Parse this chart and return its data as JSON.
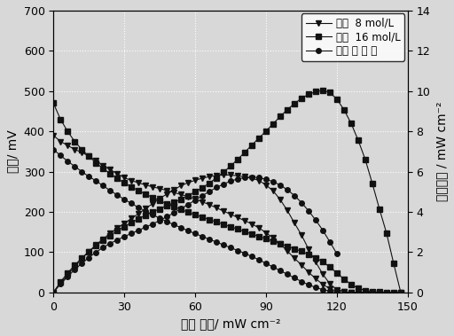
{
  "xlabel": "电流 密度/ mW cm⁻²",
  "ylabel_left": "电压/ mV",
  "ylabel_right": "功率密度 / mW cm⁻²",
  "xlim": [
    0,
    150
  ],
  "ylim_left": [
    0,
    700
  ],
  "ylim_right": [
    0,
    14
  ],
  "background_color": "#d8d8d8",
  "legend_labels": [
    "液体  8 mol/L",
    "气态  16 mol/L",
    "气态 纯 甲 醇"
  ],
  "v1x": [
    0,
    3,
    6,
    9,
    12,
    15,
    18,
    21,
    24,
    27,
    30,
    33,
    36,
    39,
    42,
    45,
    48,
    51,
    54,
    57,
    60,
    63,
    66,
    69,
    72,
    75,
    78,
    81,
    84,
    87,
    90,
    93,
    96,
    99,
    102,
    105,
    108,
    111,
    114,
    117,
    120,
    123,
    126,
    129,
    132,
    135
  ],
  "v1y": [
    390,
    375,
    365,
    355,
    348,
    338,
    328,
    315,
    305,
    295,
    285,
    278,
    272,
    267,
    262,
    258,
    253,
    248,
    243,
    238,
    232,
    225,
    218,
    210,
    202,
    194,
    186,
    178,
    170,
    160,
    148,
    135,
    120,
    103,
    85,
    68,
    50,
    34,
    20,
    9,
    3,
    1,
    0,
    0,
    0,
    0
  ],
  "p1x": [
    0,
    3,
    6,
    9,
    12,
    15,
    18,
    21,
    24,
    27,
    30,
    33,
    36,
    39,
    42,
    45,
    48,
    51,
    54,
    57,
    60,
    63,
    66,
    69,
    72,
    75,
    78,
    81,
    84,
    87,
    90,
    93,
    96,
    99,
    102,
    105,
    108,
    111,
    114,
    117,
    120,
    123,
    126,
    129,
    132,
    135
  ],
  "p1y": [
    0,
    0.45,
    0.87,
    1.28,
    1.67,
    2.03,
    2.36,
    2.65,
    2.93,
    3.19,
    3.43,
    3.67,
    3.91,
    4.16,
    4.41,
    4.67,
    4.88,
    5.1,
    5.3,
    5.45,
    5.57,
    5.67,
    5.75,
    5.81,
    5.83,
    5.83,
    5.79,
    5.74,
    5.67,
    5.56,
    5.33,
    5.04,
    4.61,
    4.07,
    3.45,
    2.85,
    2.15,
    1.51,
    0.91,
    0.42,
    0.14,
    0.05,
    0,
    0,
    0,
    0
  ],
  "v2x": [
    0,
    3,
    6,
    9,
    12,
    15,
    18,
    21,
    24,
    27,
    30,
    33,
    36,
    39,
    42,
    45,
    48,
    51,
    54,
    57,
    60,
    63,
    66,
    69,
    72,
    75,
    78,
    81,
    84,
    87,
    90,
    93,
    96,
    99,
    102,
    105,
    108,
    111,
    114,
    117,
    120,
    123,
    126,
    129,
    132,
    135,
    138,
    141,
    144,
    147
  ],
  "v2y": [
    470,
    430,
    400,
    375,
    355,
    338,
    322,
    308,
    295,
    283,
    272,
    262,
    253,
    244,
    236,
    228,
    220,
    213,
    206,
    199,
    193,
    187,
    181,
    175,
    169,
    163,
    157,
    151,
    145,
    139,
    133,
    127,
    121,
    115,
    108,
    102,
    94,
    86,
    76,
    63,
    48,
    33,
    20,
    10,
    5,
    2,
    1,
    0,
    0,
    0
  ],
  "p2x": [
    0,
    3,
    6,
    9,
    12,
    15,
    18,
    21,
    24,
    27,
    30,
    33,
    36,
    39,
    42,
    45,
    48,
    51,
    54,
    57,
    60,
    63,
    66,
    69,
    72,
    75,
    78,
    81,
    84,
    87,
    90,
    93,
    96,
    99,
    102,
    105,
    108,
    111,
    114,
    117,
    120,
    123,
    126,
    129,
    132,
    135,
    138,
    141,
    144,
    147
  ],
  "p2y": [
    0,
    0.52,
    0.96,
    1.35,
    1.7,
    2.03,
    2.32,
    2.59,
    2.83,
    3.06,
    3.27,
    3.47,
    3.65,
    3.83,
    3.99,
    4.15,
    4.3,
    4.47,
    4.63,
    4.81,
    5.0,
    5.2,
    5.43,
    5.69,
    5.97,
    6.28,
    6.61,
    6.96,
    7.32,
    7.67,
    8.01,
    8.38,
    8.74,
    9.08,
    9.38,
    9.64,
    9.84,
    9.97,
    10.04,
    9.93,
    9.6,
    9.07,
    8.4,
    7.56,
    6.6,
    5.4,
    4.14,
    2.94,
    1.44,
    0
  ],
  "v3x": [
    0,
    3,
    6,
    9,
    12,
    15,
    18,
    21,
    24,
    27,
    30,
    33,
    36,
    39,
    42,
    45,
    48,
    51,
    54,
    57,
    60,
    63,
    66,
    69,
    72,
    75,
    78,
    81,
    84,
    87,
    90,
    93,
    96,
    99,
    102,
    105,
    108,
    111,
    114,
    117,
    120
  ],
  "v3y": [
    355,
    340,
    326,
    313,
    300,
    288,
    277,
    265,
    253,
    242,
    231,
    221,
    211,
    202,
    193,
    184,
    176,
    168,
    161,
    153,
    146,
    139,
    132,
    125,
    118,
    111,
    104,
    97,
    89,
    81,
    72,
    63,
    54,
    45,
    36,
    27,
    19,
    12,
    7,
    3,
    1
  ],
  "p3x": [
    0,
    3,
    6,
    9,
    12,
    15,
    18,
    21,
    24,
    27,
    30,
    33,
    36,
    39,
    42,
    45,
    48,
    51,
    54,
    57,
    60,
    63,
    66,
    69,
    72,
    75,
    78,
    81,
    84,
    87,
    90,
    93,
    96,
    99,
    102,
    105,
    108,
    111,
    114,
    117,
    120
  ],
  "p3y": [
    0,
    0.41,
    0.78,
    1.13,
    1.44,
    1.73,
    1.99,
    2.23,
    2.43,
    2.61,
    2.77,
    2.93,
    3.08,
    3.24,
    3.4,
    3.57,
    3.76,
    3.95,
    4.16,
    4.37,
    4.58,
    4.8,
    5.01,
    5.21,
    5.38,
    5.53,
    5.63,
    5.7,
    5.72,
    5.7,
    5.62,
    5.5,
    5.33,
    5.1,
    4.81,
    4.46,
    4.05,
    3.59,
    3.09,
    2.51,
    1.91
  ],
  "color": "#111111",
  "grid_color": "#ffffff",
  "fontsize": 10,
  "tick_fontsize": 9
}
